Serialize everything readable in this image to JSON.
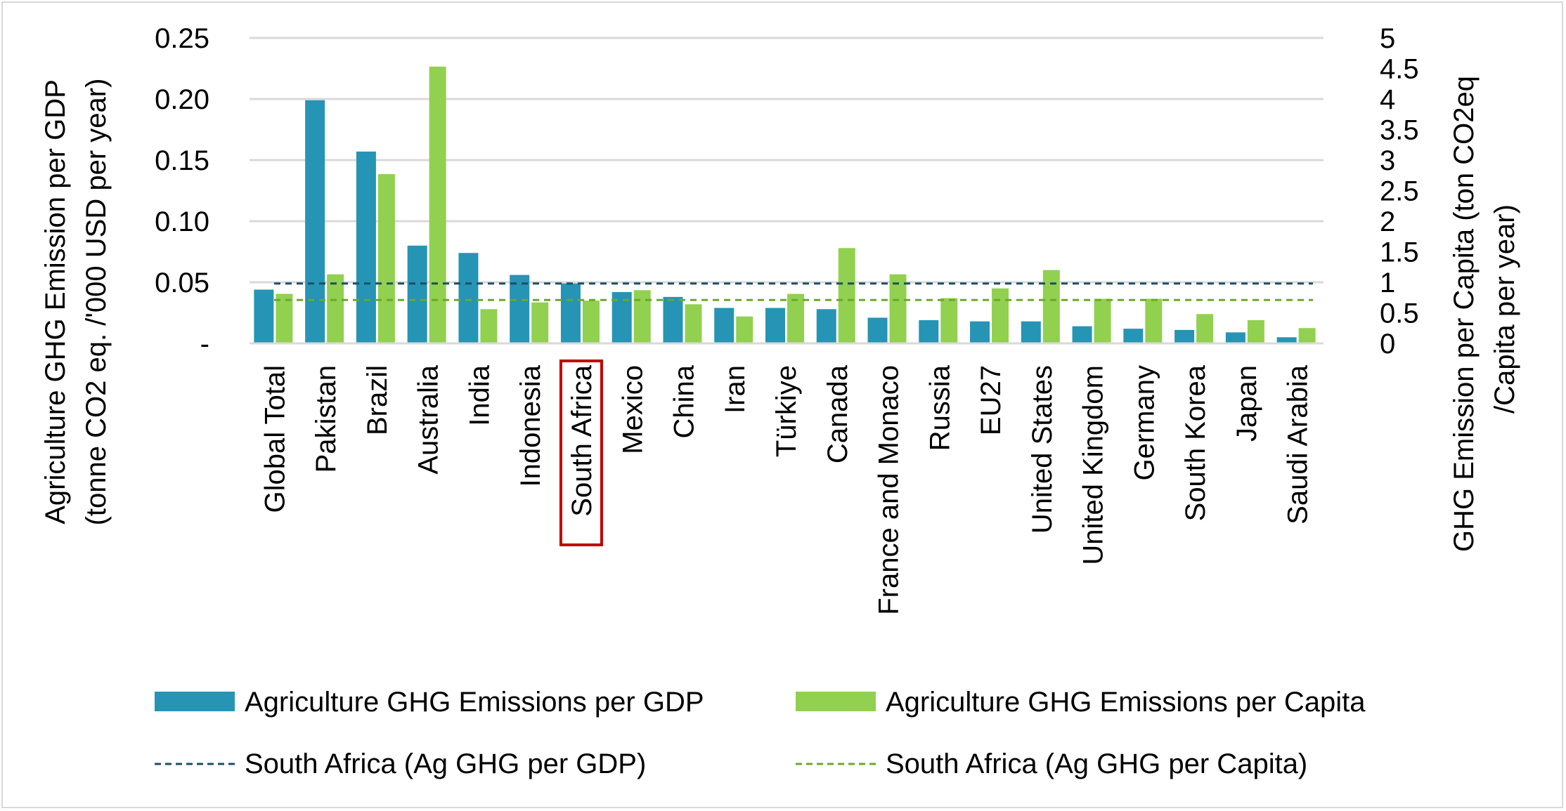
{
  "chart_data": {
    "type": "bar",
    "title": "",
    "categories": [
      "Global Total",
      "Pakistan",
      "Brazil",
      "Australia",
      "India",
      "Indonesia",
      "South Africa",
      "Mexico",
      "China",
      "Iran",
      "Türkiye",
      "Canada",
      "France and Monaco",
      "Russia",
      "EU27",
      "United States",
      "United Kingdom",
      "Germany",
      "South Korea",
      "Japan",
      "Saudi Arabia"
    ],
    "highlighted_category": "South Africa",
    "series": [
      {
        "name": "Agriculture GHG Emissions per GDP",
        "axis": "left",
        "color": "#2694b5",
        "values": [
          0.044,
          0.199,
          0.157,
          0.08,
          0.074,
          0.056,
          0.049,
          0.042,
          0.038,
          0.029,
          0.029,
          0.028,
          0.021,
          0.019,
          0.018,
          0.018,
          0.014,
          0.012,
          0.011,
          0.009,
          0.005
        ]
      },
      {
        "name": "Agriculture GHG Emissions per Capita",
        "axis": "right",
        "color": "#92d050",
        "values": [
          0.81,
          1.13,
          2.77,
          4.53,
          0.56,
          0.67,
          0.7,
          0.87,
          0.64,
          0.44,
          0.81,
          1.56,
          1.13,
          0.74,
          0.9,
          1.2,
          0.73,
          0.73,
          0.48,
          0.38,
          0.25
        ]
      }
    ],
    "reference_lines": [
      {
        "name": "South Africa (Ag GHG per GDP)",
        "axis": "left",
        "value": 0.049,
        "color": "#1b4f63"
      },
      {
        "name": "South Africa (Ag GHG per Capita)",
        "axis": "right",
        "value": 0.71,
        "color": "#6aaa2a"
      }
    ],
    "ylabel": "Agriculture GHG Emission per GDP (tonne CO2 eq. /'000 USD per year)",
    "ylabel_lines": [
      "Agriculture GHG Emission per GDP",
      "(tonne CO2 eq. /'000 USD per year)"
    ],
    "y2label": "GHG Emission per Capita (ton CO2eq /Capita per year)",
    "y2label_lines": [
      "GHG Emission per Capita (ton CO2eq",
      "/Capita per year)"
    ],
    "ylim": [
      0,
      0.25
    ],
    "y2lim": [
      0,
      5
    ],
    "yticks": [
      "-",
      "0.05",
      "0.10",
      "0.15",
      "0.20",
      "0.25"
    ],
    "y2ticks": [
      "0",
      "0.5",
      "1",
      "1.5",
      "2",
      "2.5",
      "3",
      "3.5",
      "4",
      "4.5",
      "5"
    ],
    "grid": true,
    "legend_position": "bottom"
  }
}
